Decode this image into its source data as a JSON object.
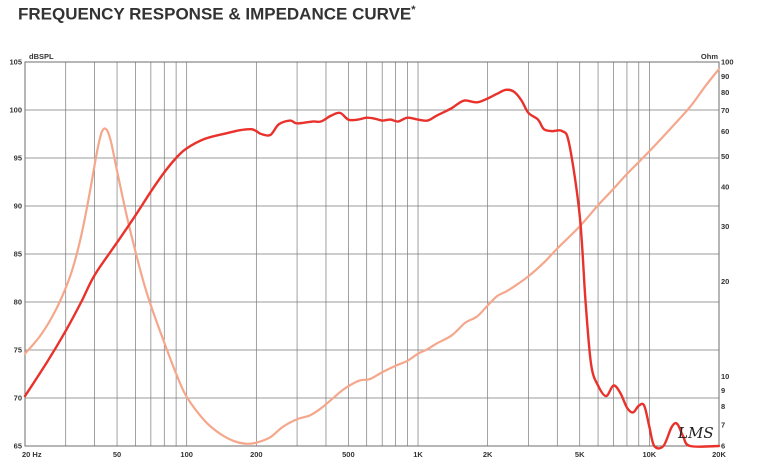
{
  "title": "FREQUENCY RESPONSE & IMPEDANCE CURVE",
  "title_mark": "*",
  "logo_text": "LMS",
  "chart_data": {
    "type": "line",
    "x_scale": "log",
    "xlim": [
      20,
      20000
    ],
    "x_ticks": [
      {
        "value": 20,
        "label": "20  Hz"
      },
      {
        "value": 50,
        "label": "50"
      },
      {
        "value": 100,
        "label": "100"
      },
      {
        "value": 200,
        "label": "200"
      },
      {
        "value": 500,
        "label": "500"
      },
      {
        "value": 1000,
        "label": "1K"
      },
      {
        "value": 2000,
        "label": "2K"
      },
      {
        "value": 5000,
        "label": "5K"
      },
      {
        "value": 10000,
        "label": "10K"
      },
      {
        "value": 20000,
        "label": "20K"
      }
    ],
    "ylabel_left": "dBSPL",
    "ylim_left": [
      65,
      105
    ],
    "y_ticks_left": [
      65,
      70,
      75,
      80,
      85,
      90,
      95,
      100,
      105
    ],
    "ylabel_right": "Ohm",
    "y_scale_right": "log",
    "ylim_right": [
      6,
      100
    ],
    "y_ticks_right": [
      6,
      7,
      8,
      9,
      10,
      20,
      30,
      40,
      50,
      60,
      70,
      80,
      90,
      100
    ],
    "grid": true,
    "series": [
      {
        "axis": "left",
        "color": "#e8322b",
        "points": [
          [
            20,
            70.2
          ],
          [
            25,
            73.8
          ],
          [
            30,
            77.0
          ],
          [
            35,
            80.0
          ],
          [
            40,
            82.8
          ],
          [
            50,
            86.2
          ],
          [
            60,
            89.0
          ],
          [
            70,
            91.5
          ],
          [
            80,
            93.5
          ],
          [
            90,
            95.0
          ],
          [
            100,
            96.0
          ],
          [
            120,
            97.0
          ],
          [
            150,
            97.6
          ],
          [
            170,
            97.9
          ],
          [
            190,
            98.0
          ],
          [
            200,
            97.8
          ],
          [
            210,
            97.5
          ],
          [
            230,
            97.4
          ],
          [
            250,
            98.5
          ],
          [
            280,
            98.9
          ],
          [
            300,
            98.6
          ],
          [
            350,
            98.8
          ],
          [
            380,
            98.8
          ],
          [
            420,
            99.4
          ],
          [
            460,
            99.7
          ],
          [
            500,
            99.0
          ],
          [
            550,
            99.0
          ],
          [
            600,
            99.2
          ],
          [
            650,
            99.1
          ],
          [
            700,
            98.9
          ],
          [
            760,
            99.0
          ],
          [
            820,
            98.8
          ],
          [
            900,
            99.2
          ],
          [
            1000,
            99.0
          ],
          [
            1100,
            98.9
          ],
          [
            1200,
            99.4
          ],
          [
            1300,
            99.8
          ],
          [
            1400,
            100.2
          ],
          [
            1500,
            100.7
          ],
          [
            1600,
            101.0
          ],
          [
            1800,
            100.8
          ],
          [
            2000,
            101.2
          ],
          [
            2200,
            101.7
          ],
          [
            2400,
            102.1
          ],
          [
            2600,
            101.9
          ],
          [
            2800,
            101.0
          ],
          [
            3000,
            99.7
          ],
          [
            3300,
            99.0
          ],
          [
            3500,
            98.0
          ],
          [
            3800,
            97.8
          ],
          [
            4200,
            97.8
          ],
          [
            4500,
            96.5
          ],
          [
            5000,
            89.0
          ],
          [
            5300,
            80.0
          ],
          [
            5600,
            73.5
          ],
          [
            6000,
            71.3
          ],
          [
            6500,
            70.2
          ],
          [
            7000,
            71.3
          ],
          [
            7500,
            70.5
          ],
          [
            8000,
            69.0
          ],
          [
            8500,
            68.5
          ],
          [
            9000,
            69.2
          ],
          [
            9500,
            69.2
          ],
          [
            10000,
            67.0
          ],
          [
            10500,
            65.0
          ],
          [
            11500,
            65.0
          ],
          [
            12500,
            67.0
          ],
          [
            13200,
            67.3
          ],
          [
            14000,
            66.0
          ],
          [
            15000,
            65.0
          ],
          [
            20000,
            65.0
          ]
        ]
      },
      {
        "axis": "right",
        "color": "#f5a78c",
        "points": [
          [
            20,
            11.8
          ],
          [
            23,
            13.3
          ],
          [
            26,
            15.3
          ],
          [
            29,
            18.0
          ],
          [
            32,
            21.8
          ],
          [
            35,
            28.0
          ],
          [
            38,
            38.0
          ],
          [
            41,
            52.0
          ],
          [
            43,
            60.0
          ],
          [
            45,
            61.0
          ],
          [
            47,
            56.0
          ],
          [
            50,
            45.0
          ],
          [
            55,
            32.5
          ],
          [
            60,
            25.0
          ],
          [
            65,
            20.0
          ],
          [
            70,
            16.8
          ],
          [
            80,
            12.8
          ],
          [
            90,
            10.2
          ],
          [
            100,
            8.6
          ],
          [
            120,
            7.2
          ],
          [
            140,
            6.55
          ],
          [
            160,
            6.22
          ],
          [
            180,
            6.1
          ],
          [
            200,
            6.15
          ],
          [
            230,
            6.4
          ],
          [
            260,
            6.9
          ],
          [
            300,
            7.3
          ],
          [
            340,
            7.5
          ],
          [
            380,
            7.9
          ],
          [
            420,
            8.4
          ],
          [
            460,
            8.9
          ],
          [
            500,
            9.3
          ],
          [
            560,
            9.7
          ],
          [
            620,
            9.8
          ],
          [
            700,
            10.3
          ],
          [
            800,
            10.8
          ],
          [
            900,
            11.2
          ],
          [
            1000,
            11.8
          ],
          [
            1100,
            12.2
          ],
          [
            1200,
            12.7
          ],
          [
            1400,
            13.5
          ],
          [
            1600,
            14.8
          ],
          [
            1800,
            15.5
          ],
          [
            2000,
            16.8
          ],
          [
            2200,
            18.0
          ],
          [
            2400,
            18.6
          ],
          [
            2600,
            19.3
          ],
          [
            3000,
            20.8
          ],
          [
            3500,
            23.0
          ],
          [
            4000,
            25.5
          ],
          [
            5000,
            30.0
          ],
          [
            6000,
            35.0
          ],
          [
            7000,
            39.5
          ],
          [
            8000,
            44.0
          ],
          [
            10000,
            52.0
          ],
          [
            12500,
            62.0
          ],
          [
            15000,
            72.0
          ],
          [
            17500,
            84.0
          ],
          [
            20000,
            95.0
          ]
        ]
      }
    ]
  }
}
